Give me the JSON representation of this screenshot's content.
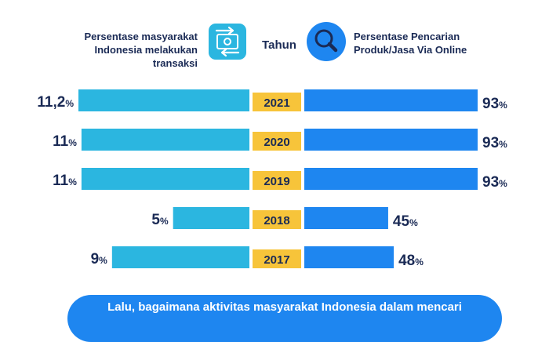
{
  "header": {
    "left_label_line1": "Persentase masyarakat",
    "left_label_line2": "Indonesia melakukan transaksi",
    "center_label": "Tahun",
    "right_label_line1": "Persentase Pencarian",
    "right_label_line2": "Produk/Jasa Via Online",
    "left_icon": "money-transfer-icon",
    "right_icon": "magnifier-icon"
  },
  "colors": {
    "left_bar": "#2bb6e0",
    "right_bar": "#1e86f0",
    "year_badge": "#f7c43a",
    "text_dark": "#1a2a55"
  },
  "chart_data": {
    "type": "bar",
    "categories": [
      "2021",
      "2020",
      "2019",
      "2018",
      "2017"
    ],
    "series": [
      {
        "values": [
          11.2,
          11,
          11,
          5,
          9
        ],
        "labels": [
          "11,2",
          "11",
          "11",
          "5",
          "9"
        ]
      },
      {
        "values": [
          93,
          93,
          93,
          45,
          48
        ],
        "labels": [
          "93",
          "93",
          "93",
          "45",
          "48"
        ]
      }
    ],
    "unit": "%"
  },
  "footer": {
    "text": "Lalu, bagaimana aktivitas masyarakat Indonesia dalam mencari"
  }
}
